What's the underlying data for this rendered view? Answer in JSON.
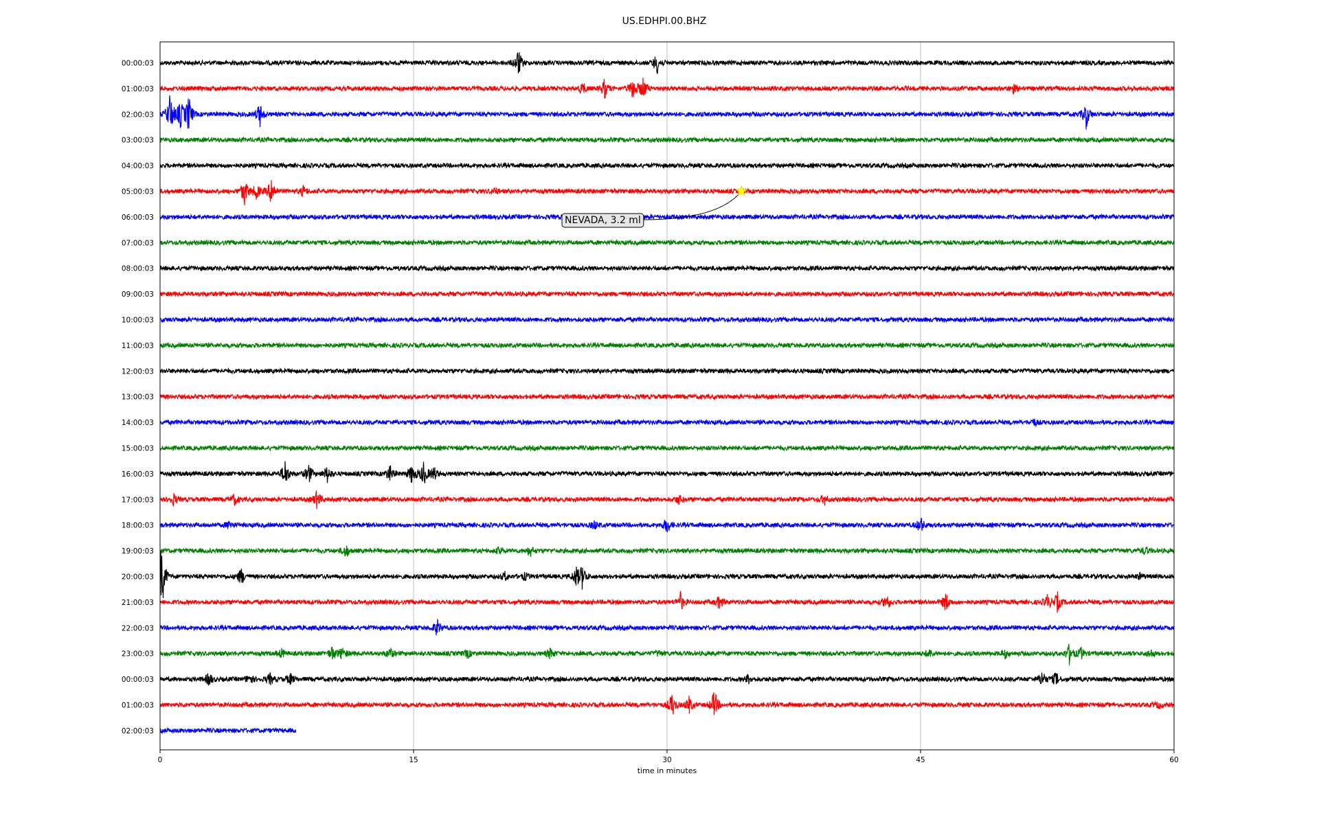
{
  "chart_data": {
    "type": "line",
    "title": "US.EDHPI.00.BHZ",
    "xlabel": "time in minutes",
    "ylabel": "",
    "xlim": [
      0,
      60
    ],
    "x_ticks": [
      "0",
      "15",
      "30",
      "45",
      "60"
    ],
    "x_tick_values": [
      0,
      15,
      30,
      45,
      60
    ],
    "grid": "vertical lines at x ticks",
    "legend": "none",
    "row_colors": [
      "#000000",
      "#ff0000",
      "#0000ff",
      "#008000"
    ],
    "rows": [
      {
        "label": "00:00:03",
        "end_minute": 60,
        "events": [
          {
            "t": 21.2,
            "a": 1.0
          },
          {
            "t": 29.4,
            "a": 0.8
          }
        ]
      },
      {
        "label": "01:00:03",
        "end_minute": 60,
        "events": [
          {
            "t": 25.0,
            "a": 0.45
          },
          {
            "t": 26.3,
            "a": 0.7
          },
          {
            "t": 28.0,
            "a": 0.9
          },
          {
            "t": 28.6,
            "a": 0.8
          },
          {
            "t": 50.5,
            "a": 0.3
          }
        ]
      },
      {
        "label": "02:00:03",
        "end_minute": 60,
        "events": [
          {
            "t": 0.6,
            "a": 1.6
          },
          {
            "t": 1.2,
            "a": 1.0
          },
          {
            "t": 1.7,
            "a": 1.4
          },
          {
            "t": 5.9,
            "a": 0.9
          },
          {
            "t": 54.8,
            "a": 1.0
          }
        ]
      },
      {
        "label": "03:00:03",
        "end_minute": 60,
        "events": []
      },
      {
        "label": "04:00:03",
        "end_minute": 60,
        "events": []
      },
      {
        "label": "05:00:03",
        "end_minute": 60,
        "events": [
          {
            "t": 5.0,
            "a": 1.0
          },
          {
            "t": 5.7,
            "a": 0.6
          },
          {
            "t": 6.6,
            "a": 1.1
          },
          {
            "t": 8.5,
            "a": 0.4
          },
          {
            "t": 19.8,
            "a": 0.25
          }
        ]
      },
      {
        "label": "06:00:03",
        "end_minute": 60,
        "events": []
      },
      {
        "label": "07:00:03",
        "end_minute": 60,
        "events": []
      },
      {
        "label": "08:00:03",
        "end_minute": 60,
        "events": []
      },
      {
        "label": "09:00:03",
        "end_minute": 60,
        "events": []
      },
      {
        "label": "10:00:03",
        "end_minute": 60,
        "events": []
      },
      {
        "label": "11:00:03",
        "end_minute": 60,
        "events": []
      },
      {
        "label": "12:00:03",
        "end_minute": 60,
        "events": []
      },
      {
        "label": "13:00:03",
        "end_minute": 60,
        "events": []
      },
      {
        "label": "14:00:03",
        "end_minute": 60,
        "events": [
          {
            "t": 51.7,
            "a": 0.25
          }
        ]
      },
      {
        "label": "15:00:03",
        "end_minute": 60,
        "events": []
      },
      {
        "label": "16:00:03",
        "end_minute": 60,
        "events": [
          {
            "t": 7.4,
            "a": 1.0
          },
          {
            "t": 8.8,
            "a": 0.7
          },
          {
            "t": 9.9,
            "a": 0.6
          },
          {
            "t": 13.6,
            "a": 0.6
          },
          {
            "t": 14.9,
            "a": 0.7
          },
          {
            "t": 15.6,
            "a": 0.9
          },
          {
            "t": 16.2,
            "a": 0.5
          }
        ]
      },
      {
        "label": "17:00:03",
        "end_minute": 60,
        "events": [
          {
            "t": 0.8,
            "a": 0.4
          },
          {
            "t": 4.4,
            "a": 0.4
          },
          {
            "t": 9.3,
            "a": 0.7
          },
          {
            "t": 30.7,
            "a": 0.3
          },
          {
            "t": 39.3,
            "a": 0.4
          }
        ]
      },
      {
        "label": "18:00:03",
        "end_minute": 60,
        "events": [
          {
            "t": 4.1,
            "a": 0.3
          },
          {
            "t": 25.7,
            "a": 0.3
          },
          {
            "t": 30.0,
            "a": 0.6
          },
          {
            "t": 45.0,
            "a": 0.6
          }
        ]
      },
      {
        "label": "19:00:03",
        "end_minute": 60,
        "events": [
          {
            "t": 11.0,
            "a": 0.5
          },
          {
            "t": 20.1,
            "a": 0.3
          },
          {
            "t": 21.9,
            "a": 0.4
          },
          {
            "t": 58.3,
            "a": 0.3
          }
        ]
      },
      {
        "label": "20:00:03",
        "end_minute": 60,
        "events": [
          {
            "t": 0.1,
            "a": 2.6
          },
          {
            "t": 4.8,
            "a": 0.6
          },
          {
            "t": 20.4,
            "a": 0.3
          },
          {
            "t": 21.6,
            "a": 0.25
          },
          {
            "t": 24.6,
            "a": 0.7
          },
          {
            "t": 25.0,
            "a": 0.9
          },
          {
            "t": 58.0,
            "a": 0.2
          }
        ]
      },
      {
        "label": "21:00:03",
        "end_minute": 60,
        "events": [
          {
            "t": 30.8,
            "a": 0.7
          },
          {
            "t": 33.1,
            "a": 0.5
          },
          {
            "t": 43.0,
            "a": 0.6
          },
          {
            "t": 46.5,
            "a": 0.7
          },
          {
            "t": 52.5,
            "a": 0.5
          },
          {
            "t": 53.1,
            "a": 0.7
          }
        ]
      },
      {
        "label": "22:00:03",
        "end_minute": 60,
        "events": [
          {
            "t": 16.4,
            "a": 0.6
          }
        ]
      },
      {
        "label": "23:00:03",
        "end_minute": 60,
        "events": [
          {
            "t": 7.2,
            "a": 0.3
          },
          {
            "t": 10.2,
            "a": 0.5
          },
          {
            "t": 10.8,
            "a": 0.5
          },
          {
            "t": 13.6,
            "a": 0.4
          },
          {
            "t": 18.2,
            "a": 0.3
          },
          {
            "t": 23.1,
            "a": 0.4
          },
          {
            "t": 29.5,
            "a": 0.2
          },
          {
            "t": 45.5,
            "a": 0.3
          },
          {
            "t": 50.0,
            "a": 0.3
          },
          {
            "t": 53.8,
            "a": 0.7
          },
          {
            "t": 54.5,
            "a": 0.4
          },
          {
            "t": 58.6,
            "a": 0.3
          }
        ]
      },
      {
        "label": "00:00:03",
        "end_minute": 60,
        "events": [
          {
            "t": 2.9,
            "a": 0.5
          },
          {
            "t": 5.3,
            "a": 0.4
          },
          {
            "t": 6.5,
            "a": 0.4
          },
          {
            "t": 7.7,
            "a": 0.4
          },
          {
            "t": 34.8,
            "a": 0.3
          },
          {
            "t": 52.2,
            "a": 0.6
          },
          {
            "t": 53.0,
            "a": 0.5
          }
        ]
      },
      {
        "label": "01:00:03",
        "end_minute": 60,
        "events": [
          {
            "t": 30.3,
            "a": 0.9
          },
          {
            "t": 31.3,
            "a": 0.6
          },
          {
            "t": 32.8,
            "a": 1.1
          },
          {
            "t": 59.1,
            "a": 0.2
          }
        ]
      },
      {
        "label": "02:00:03",
        "end_minute": 8.05,
        "events": []
      }
    ],
    "annotations": [
      {
        "text": "NEVADA, 3.2 ml",
        "row": 5,
        "minute": 34.4,
        "marker": "star",
        "marker_color": "#ffff00"
      }
    ]
  }
}
